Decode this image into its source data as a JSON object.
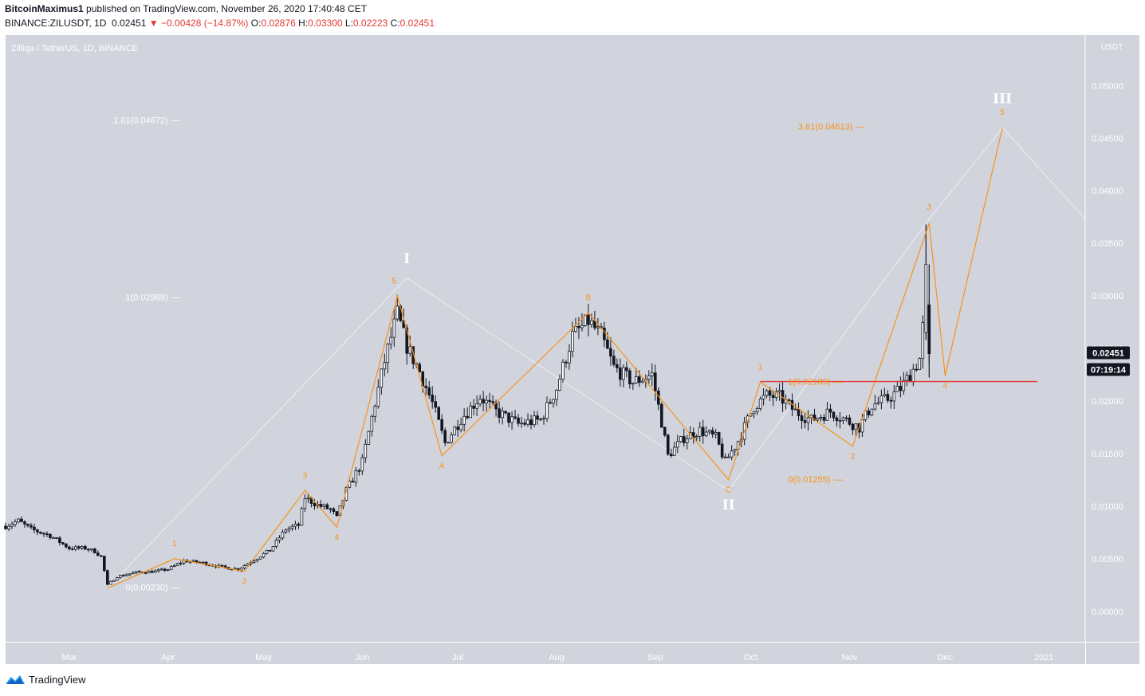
{
  "header": {
    "author": "BitcoinMaximus1",
    "published_text": "published on TradingView.com, November 26, 2020 17:40:48 CET",
    "symbol": "BINANCE:ZILUSDT, 1D",
    "last": "0.02451",
    "change": "−0.00428 (−14.87%)",
    "change_arrow": "▼",
    "o_label": "O:",
    "o_value": "0.02876",
    "h_label": "H:",
    "h_value": "0.03300",
    "l_label": "L:",
    "l_value": "0.02223",
    "c_label": "C:",
    "c_value": "0.02451"
  },
  "footer": {
    "brand": "TradingView",
    "logo_icon": "tradingview-logo-icon"
  },
  "colors": {
    "plot_bg": "#d1d4dc",
    "orange": "#f7931a",
    "white_line": "#eceef2",
    "red_line": "#e53935",
    "candle": "#131722",
    "badge_bg": "#131722"
  },
  "chart_data": {
    "type": "candlestick",
    "title": "Zilliqa / TetherUS, 1D, BINANCE",
    "currency_label": "USDT",
    "x_labels": [
      "Mar",
      "Apr",
      "May",
      "Jun",
      "Jul",
      "Aug",
      "Sep",
      "Oct",
      "Nov",
      "Dec",
      "2021"
    ],
    "x_range": [
      "2020-02-10",
      "2021-01-14"
    ],
    "y_ticks": [
      "0.05000",
      "0.04500",
      "0.04000",
      "0.03500",
      "0.03000",
      "0.02500",
      "0.02000",
      "0.01500",
      "0.01000",
      "0.00500",
      "0.00000"
    ],
    "ylim": [
      -0.0029,
      0.0548
    ],
    "last_price": "0.02451",
    "countdown": "07:19:14",
    "price_path": [
      [
        "2020-02-10",
        0.0081
      ],
      [
        "2020-02-14",
        0.0086
      ],
      [
        "2020-02-18",
        0.0078
      ],
      [
        "2020-02-24",
        0.0072
      ],
      [
        "2020-03-01",
        0.006
      ],
      [
        "2020-03-06",
        0.006
      ],
      [
        "2020-03-09",
        0.0057
      ],
      [
        "2020-03-11",
        0.0052
      ],
      [
        "2020-03-13",
        0.0025
      ],
      [
        "2020-03-16",
        0.0033
      ],
      [
        "2020-03-22",
        0.0037
      ],
      [
        "2020-03-28",
        0.0038
      ],
      [
        "2020-04-01",
        0.004
      ],
      [
        "2020-04-06",
        0.0048
      ],
      [
        "2020-04-12",
        0.0046
      ],
      [
        "2020-04-18",
        0.0042
      ],
      [
        "2020-04-23",
        0.004
      ],
      [
        "2020-04-28",
        0.0049
      ],
      [
        "2020-05-03",
        0.0058
      ],
      [
        "2020-05-08",
        0.0078
      ],
      [
        "2020-05-12",
        0.0082
      ],
      [
        "2020-05-14",
        0.0108
      ],
      [
        "2020-05-18",
        0.0101
      ],
      [
        "2020-05-22",
        0.0097
      ],
      [
        "2020-05-24",
        0.0089
      ],
      [
        "2020-05-27",
        0.0115
      ],
      [
        "2020-06-01",
        0.0142
      ],
      [
        "2020-06-05",
        0.0198
      ],
      [
        "2020-06-08",
        0.0238
      ],
      [
        "2020-06-12",
        0.0283
      ],
      [
        "2020-06-15",
        0.0252
      ],
      [
        "2020-06-19",
        0.0228
      ],
      [
        "2020-06-23",
        0.0198
      ],
      [
        "2020-06-27",
        0.016
      ],
      [
        "2020-07-02",
        0.0183
      ],
      [
        "2020-07-08",
        0.0204
      ],
      [
        "2020-07-13",
        0.019
      ],
      [
        "2020-07-20",
        0.0178
      ],
      [
        "2020-07-27",
        0.0182
      ],
      [
        "2020-08-01",
        0.0212
      ],
      [
        "2020-08-06",
        0.0262
      ],
      [
        "2020-08-11",
        0.0276
      ],
      [
        "2020-08-15",
        0.0262
      ],
      [
        "2020-08-19",
        0.0232
      ],
      [
        "2020-08-25",
        0.0218
      ],
      [
        "2020-08-31",
        0.0225
      ],
      [
        "2020-09-03",
        0.018
      ],
      [
        "2020-09-05",
        0.0148
      ],
      [
        "2020-09-10",
        0.0165
      ],
      [
        "2020-09-15",
        0.0172
      ],
      [
        "2020-09-20",
        0.0165
      ],
      [
        "2020-09-23",
        0.0142
      ],
      [
        "2020-09-27",
        0.0162
      ],
      [
        "2020-10-02",
        0.0195
      ],
      [
        "2020-10-06",
        0.0205
      ],
      [
        "2020-10-10",
        0.0204
      ],
      [
        "2020-10-15",
        0.019
      ],
      [
        "2020-10-20",
        0.0182
      ],
      [
        "2020-10-26",
        0.019
      ],
      [
        "2020-11-01",
        0.018
      ],
      [
        "2020-11-04",
        0.0175
      ],
      [
        "2020-11-08",
        0.0196
      ],
      [
        "2020-11-13",
        0.0202
      ],
      [
        "2020-11-17",
        0.0212
      ],
      [
        "2020-11-20",
        0.0225
      ],
      [
        "2020-11-23",
        0.024
      ],
      [
        "2020-11-24",
        0.027
      ],
      [
        "2020-11-25",
        0.0285
      ],
      [
        "2020-11-26",
        0.0245
      ]
    ],
    "fib_labels": [
      {
        "text": "1.61(0.04672)",
        "price": 0.04672,
        "date": "2020-04-01",
        "color": "white"
      },
      {
        "text": "1(0.02989)",
        "price": 0.02989,
        "date": "2020-04-01",
        "color": "white"
      },
      {
        "text": "0(0.00230)",
        "price": 0.0023,
        "date": "2020-04-01",
        "color": "white"
      },
      {
        "text": "3.61(0.04613)",
        "price": 0.04613,
        "date": "2020-11-02",
        "color": "orange"
      },
      {
        "text": "1(0.02185)",
        "price": 0.02185,
        "date": "2020-10-26",
        "color": "orange"
      },
      {
        "text": "0(0.01255)",
        "price": 0.01255,
        "date": "2020-10-26",
        "color": "orange"
      }
    ],
    "orange_wave_path": [
      [
        "2020-03-13",
        0.0022
      ],
      [
        "2020-04-03",
        0.005
      ],
      [
        "2020-04-25",
        0.0038
      ],
      [
        "2020-05-14",
        0.0115
      ],
      [
        "2020-05-24",
        0.008
      ],
      [
        "2020-06-12",
        0.03
      ],
      [
        "2020-06-26",
        0.0148
      ],
      [
        "2020-08-11",
        0.0284
      ],
      [
        "2020-09-24",
        0.0125
      ],
      [
        "2020-10-04",
        0.0218
      ],
      [
        "2020-11-02",
        0.0157
      ],
      [
        "2020-11-26",
        0.0369
      ],
      [
        "2020-12-01",
        0.0224
      ],
      [
        "2020-12-19",
        0.046
      ]
    ],
    "white_wave_path": [
      [
        "2020-03-13",
        0.0022
      ],
      [
        "2020-06-15",
        0.0317
      ],
      [
        "2020-09-24",
        0.0115
      ],
      [
        "2020-11-26",
        0.0373
      ],
      [
        "2020-12-19",
        0.046
      ],
      [
        "2021-01-14",
        0.0373
      ]
    ],
    "red_line": {
      "price": 0.02185,
      "from": "2020-10-04",
      "to": "2020-12-30"
    },
    "orange_wave_labels": [
      {
        "text": "1",
        "date": "2020-04-03",
        "price": 0.0062
      },
      {
        "text": "2",
        "date": "2020-04-25",
        "price": 0.0026
      },
      {
        "text": "3",
        "date": "2020-05-14",
        "price": 0.0127
      },
      {
        "text": "4",
        "date": "2020-05-24",
        "price": 0.0068
      },
      {
        "text": "5",
        "date": "2020-06-11",
        "price": 0.0312
      },
      {
        "text": "A",
        "date": "2020-06-26",
        "price": 0.0136
      },
      {
        "text": "B",
        "date": "2020-08-11",
        "price": 0.0296
      },
      {
        "text": "C",
        "date": "2020-09-24",
        "price": 0.0113
      },
      {
        "text": "1",
        "date": "2020-10-04",
        "price": 0.023
      },
      {
        "text": "2",
        "date": "2020-11-02",
        "price": 0.0145
      },
      {
        "text": "3",
        "date": "2020-11-26",
        "price": 0.0382
      },
      {
        "text": "4",
        "date": "2020-12-01",
        "price": 0.0212
      },
      {
        "text": "5",
        "date": "2020-12-19",
        "price": 0.0472
      }
    ],
    "white_wave_labels": [
      {
        "text": "I",
        "date": "2020-06-15",
        "price": 0.0331
      },
      {
        "text": "II",
        "date": "2020-09-24",
        "price": 0.0097
      },
      {
        "text": "III",
        "date": "2020-12-19",
        "price": 0.0483
      }
    ]
  }
}
